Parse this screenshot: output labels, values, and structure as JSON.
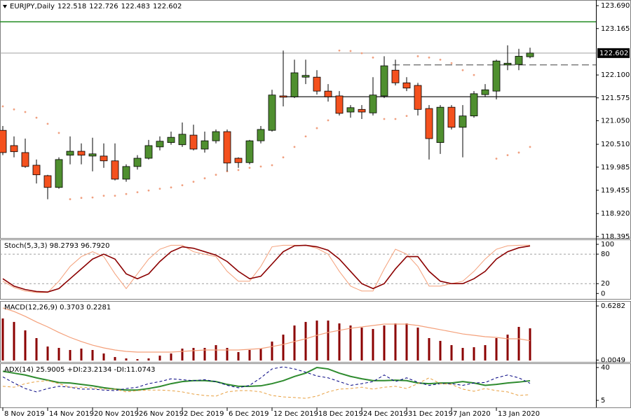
{
  "chart_data": [
    {
      "type": "candlestick",
      "title": "EURJPY,Daily",
      "categories": [
        "8 Nov 2019",
        null,
        null,
        null,
        "14 Nov 2019",
        null,
        null,
        null,
        "20 Nov 2019",
        null,
        null,
        null,
        "26 Nov 2019",
        null,
        null,
        null,
        "2 Dec 2019",
        null,
        null,
        null,
        "6 Dec 2019",
        null,
        null,
        null,
        "12 Dec 2019",
        null,
        null,
        null,
        "18 Dec 2019",
        null,
        null,
        null,
        "24 Dec 2019",
        null,
        null,
        null,
        "31 Dec 2019",
        null,
        null,
        null,
        "7 Jan 2020",
        null,
        null,
        null,
        "13 Jan 2020",
        null,
        null,
        null
      ],
      "open": [
        120.83,
        120.48,
        120.32,
        120.03,
        119.79,
        119.52,
        120.26,
        120.35,
        120.24,
        120.24,
        120.13,
        119.71,
        120.0,
        120.19,
        120.45,
        120.55,
        120.5,
        120.72,
        120.4,
        120.59,
        120.8,
        120.19,
        120.09,
        120.59,
        120.83,
        121.62,
        121.6,
        122.05,
        122.05,
        121.73,
        121.62,
        121.25,
        121.31,
        121.23,
        121.62,
        122.21,
        121.92,
        121.86,
        121.33,
        120.55,
        121.36,
        120.9,
        121.16,
        121.65,
        121.73,
        122.33,
        122.34,
        122.518
      ],
      "high": [
        120.93,
        120.69,
        120.64,
        120.16,
        119.81,
        120.21,
        120.69,
        120.53,
        120.66,
        120.53,
        120.53,
        120.05,
        120.26,
        120.61,
        120.69,
        120.8,
        121.01,
        120.96,
        120.8,
        120.85,
        120.85,
        120.21,
        120.61,
        120.93,
        121.76,
        122.66,
        122.45,
        122.45,
        122.21,
        121.89,
        121.73,
        121.41,
        121.41,
        122.05,
        122.53,
        122.45,
        122.05,
        121.92,
        121.41,
        121.41,
        121.41,
        121.41,
        121.73,
        121.89,
        122.45,
        122.78,
        122.7,
        122.726
      ],
      "low": [
        120.26,
        120.21,
        119.97,
        119.61,
        119.25,
        119.49,
        120.05,
        120.05,
        119.89,
        119.97,
        119.68,
        119.65,
        119.93,
        120.16,
        120.37,
        120.5,
        120.45,
        120.37,
        120.32,
        120.53,
        119.89,
        119.97,
        120.05,
        120.53,
        120.8,
        121.38,
        121.57,
        121.89,
        121.65,
        121.49,
        121.17,
        121.12,
        121.09,
        121.17,
        121.57,
        121.86,
        121.73,
        121.17,
        120.16,
        120.29,
        120.85,
        120.21,
        121.12,
        121.6,
        121.54,
        122.21,
        122.21,
        122.483
      ],
      "close": [
        120.32,
        120.34,
        120.0,
        119.81,
        119.52,
        120.16,
        120.35,
        120.26,
        120.29,
        120.13,
        119.71,
        120.0,
        120.19,
        120.48,
        120.58,
        120.67,
        120.74,
        120.4,
        120.59,
        120.8,
        120.08,
        120.09,
        120.59,
        120.85,
        121.64,
        121.59,
        122.15,
        122.09,
        121.73,
        121.6,
        121.22,
        121.35,
        121.25,
        121.64,
        122.31,
        121.92,
        121.8,
        121.31,
        120.64,
        121.36,
        120.9,
        121.16,
        121.67,
        121.76,
        122.42,
        122.37,
        122.53,
        122.602
      ],
      "up_color": "#4f8f2f",
      "down_color": "#f4511e",
      "sar": {
        "color": "#f0a080",
        "values": [
          121.38,
          121.31,
          121.25,
          121.12,
          120.98,
          120.77,
          119.25,
          119.28,
          119.29,
          119.33,
          119.33,
          119.37,
          119.41,
          119.45,
          119.49,
          119.52,
          119.57,
          119.65,
          119.73,
          119.81,
          119.89,
          119.92,
          119.97,
          120.0,
          120.03,
          120.21,
          120.45,
          120.69,
          120.88,
          121.06,
          122.66,
          122.65,
          122.6,
          122.5,
          121.09,
          121.09,
          121.16,
          122.53,
          122.5,
          122.45,
          122.37,
          122.21,
          122.1,
          null,
          120.18,
          120.26,
          120.32,
          120.45
        ]
      },
      "levels": [
        {
          "value": 123.32,
          "color": "#228b22",
          "start": 0
        },
        {
          "value": 122.33,
          "color": "#404040",
          "dash": true,
          "start": 35
        },
        {
          "value": 121.6,
          "color": "#404040",
          "start": 25
        }
      ],
      "ylim": [
        118.36,
        123.82
      ],
      "yticks": [
        {
          "value": 123.69,
          "label": "123.690"
        },
        123.165,
        {
          "value": 122.1,
          "label": "122.100"
        },
        121.575,
        {
          "value": 121.05,
          "label": "121.050"
        },
        {
          "value": 120.51,
          "label": "120.510"
        },
        119.985,
        119.455,
        {
          "value": 118.92,
          "label": "118.920"
        },
        118.395
      ]
    },
    {
      "type": "line",
      "title": "Stoch(5,3,3) 98.2793 96.7920",
      "series": [
        {
          "color": "#f4a07a",
          "values": [
            25,
            12,
            5,
            2,
            2,
            25,
            55,
            75,
            85,
            75,
            40,
            10,
            40,
            70,
            90,
            98,
            98,
            85,
            80,
            75,
            45,
            25,
            25,
            55,
            95,
            98,
            98,
            98,
            92,
            80,
            45,
            15,
            5,
            5,
            50,
            90,
            80,
            55,
            15,
            15,
            20,
            25,
            45,
            70,
            90,
            97,
            98,
            98.2793
          ]
        },
        {
          "color": "#8b0000",
          "width": 1.6,
          "values": [
            30,
            15,
            8,
            4,
            3,
            10,
            30,
            50,
            70,
            80,
            70,
            40,
            30,
            40,
            65,
            85,
            95,
            92,
            85,
            78,
            65,
            45,
            30,
            35,
            60,
            85,
            97,
            98,
            95,
            88,
            70,
            45,
            20,
            10,
            20,
            50,
            75,
            75,
            45,
            25,
            20,
            20,
            30,
            45,
            70,
            85,
            93,
            96.792
          ]
        }
      ],
      "levels": [
        80,
        20
      ],
      "ylim": [
        -11,
        110
      ],
      "yticks": [
        100,
        80,
        20,
        0
      ]
    },
    {
      "type": "bar",
      "title": "MACD(12,26,9) 0.3703 0.2281",
      "series": [
        {
          "kind": "bar",
          "color": "#8b0000",
          "values": [
            0.484,
            0.444,
            0.347,
            0.258,
            0.161,
            0.145,
            0.121,
            0.137,
            0.121,
            0.081,
            0.04,
            0.024,
            0.016,
            0.024,
            0.056,
            0.081,
            0.137,
            0.145,
            0.145,
            0.177,
            0.145,
            0.097,
            0.121,
            0.137,
            0.218,
            0.298,
            0.403,
            0.444,
            0.46,
            0.46,
            0.427,
            0.403,
            0.379,
            0.363,
            0.403,
            0.427,
            0.427,
            0.379,
            0.258,
            0.226,
            0.177,
            0.145,
            0.153,
            0.177,
            0.258,
            0.298,
            0.387,
            0.3703
          ]
        },
        {
          "kind": "line",
          "color": "#f4a07a",
          "values": [
            0.605,
            0.565,
            0.508,
            0.444,
            0.387,
            0.323,
            0.266,
            0.218,
            0.177,
            0.145,
            0.121,
            0.105,
            0.097,
            0.097,
            0.097,
            0.097,
            0.105,
            0.113,
            0.121,
            0.121,
            0.121,
            0.121,
            0.129,
            0.137,
            0.161,
            0.185,
            0.218,
            0.25,
            0.29,
            0.323,
            0.347,
            0.371,
            0.387,
            0.403,
            0.419,
            0.419,
            0.419,
            0.403,
            0.379,
            0.355,
            0.331,
            0.306,
            0.29,
            0.274,
            0.266,
            0.25,
            0.25,
            0.2281
          ]
        }
      ],
      "ylim": [
        -0.016,
        0.685
      ],
      "yticks": [
        0.6282,
        0.0049
      ]
    },
    {
      "type": "line",
      "title": "ADX(14) 25.9005 +DI:23.2134 -DI:11.0743",
      "series": [
        {
          "color": "#2e8b2e",
          "width": 2,
          "values": [
            36,
            34,
            32,
            29,
            26.5,
            24,
            23.5,
            22,
            20.5,
            18.5,
            17,
            16,
            16,
            17.6,
            19.8,
            22.8,
            25,
            26,
            26,
            25,
            22,
            20,
            20,
            20.5,
            22.8,
            26,
            30.5,
            34,
            40,
            38.5,
            34,
            30.5,
            28,
            26,
            26,
            26.5,
            26,
            23.5,
            22.8,
            23.5,
            23.5,
            25,
            23.5,
            21,
            22,
            23.5,
            24.5,
            25.9005
          ]
        },
        {
          "color": "#000080",
          "dash": true,
          "values": [
            30,
            23.5,
            17.6,
            14,
            17.6,
            20,
            19,
            17,
            17,
            16,
            15.4,
            17.6,
            19,
            22.8,
            25,
            28,
            27,
            26,
            27,
            25,
            21,
            18.4,
            21,
            29,
            38.5,
            40.7,
            38.5,
            35,
            31,
            29,
            25,
            21,
            22.8,
            25,
            32,
            25,
            29,
            24.3,
            21,
            22.8,
            22.8,
            21,
            23.5,
            24,
            29,
            32,
            29,
            23.2134
          ]
        },
        {
          "color": "#e8a040",
          "dash": true,
          "values": [
            20,
            19,
            22.8,
            25,
            26,
            22.8,
            19,
            19,
            18.4,
            17,
            17,
            14,
            15.4,
            16,
            16,
            15.4,
            14,
            11.7,
            10.2,
            9.5,
            14,
            15.4,
            15.4,
            14,
            10.2,
            8.7,
            8,
            7.2,
            9.5,
            14,
            17,
            17.6,
            19,
            17,
            19,
            20,
            17.6,
            22.8,
            29,
            22.8,
            22,
            17,
            14.7,
            17.6,
            15.4,
            14,
            10.2,
            11.0743
          ]
        }
      ],
      "ylim": [
        -2.5,
        44.5
      ],
      "yticks": [
        40,
        5
      ]
    }
  ]
}
